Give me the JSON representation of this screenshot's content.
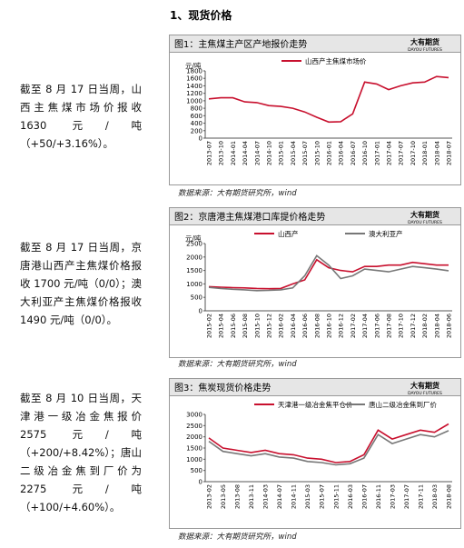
{
  "document": {
    "heading": "1、现货价格",
    "logo": "大有期货",
    "logo_en": "DAYOU FUTURES",
    "paragraphs": [
      "截至 8 月 17 日当周，山西主焦煤市场价报收 1630 元/吨（+50/+3.16%）。",
      "截至 8 月 17 日当周，京唐港山西产主焦煤价格报收 1700 元/吨（0/0）；澳大利亚产主焦煤价格报收 1490 元/吨（0/0）。",
      "截至 8 月 10 日当周，天津港一级冶金焦报价 2575 元/吨（+200/+8.42%）；唐山二级冶金焦到厂价为 2275 元/吨（+100/+4.60%）。"
    ],
    "sources": [
      "数据来源：大有期货研究所，wind",
      "数据来源：大有期货研究所，wind",
      "数据来源：大有期货研究所，wind"
    ]
  },
  "chart_data": [
    {
      "type": "line",
      "title": "图1：主焦煤主产区产地报价走势",
      "y_label": "元/吨",
      "ylim": [
        0,
        1800
      ],
      "yticks": [
        0,
        200,
        400,
        600,
        800,
        1000,
        1200,
        1400,
        1600,
        1800
      ],
      "categories": [
        "2013-07",
        "2013-10",
        "2014-01",
        "2014-04",
        "2014-07",
        "2014-10",
        "2015-01",
        "2015-04",
        "2015-07",
        "2015-10",
        "2016-01",
        "2016-04",
        "2016-07",
        "2016-10",
        "2017-01",
        "2017-04",
        "2017-07",
        "2017-10",
        "2018-01",
        "2018-04",
        "2018-07"
      ],
      "series": [
        {
          "name": "山西产主焦煤市场价",
          "color": "#c8102e",
          "values": [
            1050,
            1080,
            1080,
            970,
            950,
            870,
            850,
            800,
            700,
            560,
            430,
            440,
            650,
            1500,
            1450,
            1300,
            1400,
            1480,
            1500,
            1650,
            1620
          ]
        }
      ]
    },
    {
      "type": "line",
      "title": "图2：京唐港主焦煤港口库提价格走势",
      "y_label": "元/吨",
      "ylim": [
        0,
        2500
      ],
      "yticks": [
        0,
        500,
        1000,
        1500,
        2000,
        2500
      ],
      "categories": [
        "2015-02",
        "2015-04",
        "2015-06",
        "2015-08",
        "2015-10",
        "2015-12",
        "2016-02",
        "2016-04",
        "2016-06",
        "2016-08",
        "2016-10",
        "2016-12",
        "2017-02",
        "2017-04",
        "2017-06",
        "2017-08",
        "2017-10",
        "2017-12",
        "2018-02",
        "2018-04",
        "2018-06"
      ],
      "series": [
        {
          "name": "山西产",
          "color": "#c8102e",
          "values": [
            900,
            880,
            860,
            850,
            830,
            820,
            830,
            1000,
            1150,
            1900,
            1600,
            1500,
            1450,
            1650,
            1650,
            1700,
            1700,
            1800,
            1750,
            1700,
            1700
          ]
        },
        {
          "name": "澳大利亚产",
          "color": "#777777",
          "values": [
            870,
            830,
            800,
            780,
            750,
            760,
            780,
            850,
            1300,
            2050,
            1700,
            1200,
            1300,
            1550,
            1500,
            1450,
            1550,
            1650,
            1600,
            1550,
            1490
          ]
        }
      ]
    },
    {
      "type": "line",
      "title": "图3：焦炭现货价格走势",
      "ylim": [
        0,
        3000
      ],
      "yticks": [
        0,
        500,
        1000,
        1500,
        2000,
        2500,
        3000
      ],
      "categories": [
        "2013-02",
        "2013-05",
        "2013-08",
        "2013-11",
        "2014-03",
        "2014-07",
        "2014-11",
        "2015-03",
        "2015-07",
        "2015-11",
        "2016-03",
        "2016-07",
        "2016-11",
        "2017-03",
        "2017-07",
        "2017-11",
        "2018-03",
        "2018-08"
      ],
      "series": [
        {
          "name": "天津港一级冶金焦平仓价",
          "color": "#c8102e",
          "values": [
            1950,
            1500,
            1400,
            1300,
            1400,
            1250,
            1200,
            1050,
            1000,
            850,
            900,
            1200,
            2300,
            1900,
            2100,
            2300,
            2200,
            2575
          ]
        },
        {
          "name": "唐山二级冶金焦到厂价",
          "color": "#777777",
          "values": [
            1800,
            1350,
            1250,
            1150,
            1250,
            1100,
            1050,
            900,
            850,
            750,
            800,
            1050,
            2100,
            1700,
            1900,
            2100,
            2000,
            2275
          ]
        }
      ]
    }
  ]
}
